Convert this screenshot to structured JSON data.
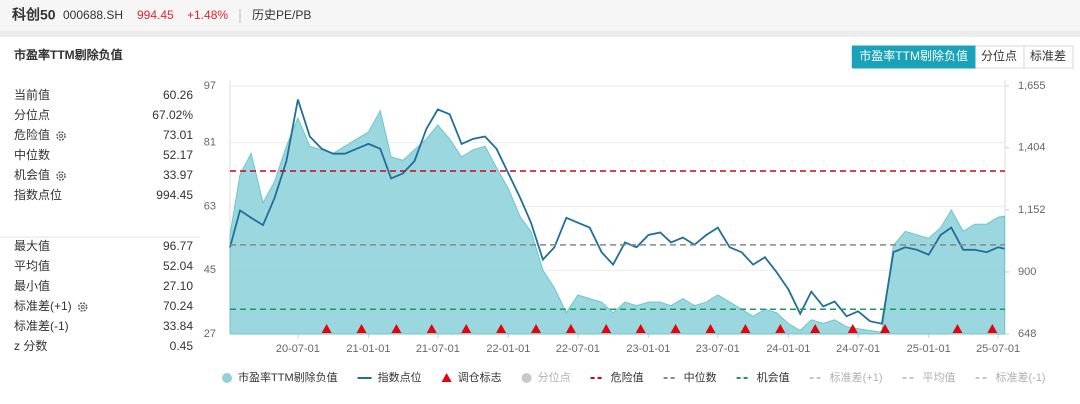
{
  "header": {
    "name": "科创50",
    "code": "000688.SH",
    "price": "994.45",
    "change": "+1.48%",
    "menu": "历史PE/PB"
  },
  "panel": {
    "title": "市盈率TTM剔除负值",
    "tabs": [
      "市盈率TTM剔除负值",
      "分位点",
      "标准差"
    ],
    "active_tab": 0
  },
  "stats": {
    "groups": [
      [
        {
          "label": "当前值",
          "value": "60.26",
          "gear": false
        },
        {
          "label": "分位点",
          "value": "67.02%",
          "gear": false
        },
        {
          "label": "危险值",
          "value": "73.01",
          "gear": true
        },
        {
          "label": "中位数",
          "value": "52.17",
          "gear": false
        },
        {
          "label": "机会值",
          "value": "33.97",
          "gear": true
        },
        {
          "label": "指数点位",
          "value": "994.45",
          "gear": false
        }
      ],
      [
        {
          "label": "最大值",
          "value": "96.77",
          "gear": false
        },
        {
          "label": "平均值",
          "value": "52.04",
          "gear": false
        },
        {
          "label": "最小值",
          "value": "27.10",
          "gear": false
        },
        {
          "label": "标准差(+1)",
          "value": "70.24",
          "gear": true
        },
        {
          "label": "标准差(-1)",
          "value": "33.84",
          "gear": false
        },
        {
          "label": "z 分数",
          "value": "0.45",
          "gear": false
        }
      ]
    ]
  },
  "chart_data": {
    "type": "area-line",
    "x": [
      "20-01-06",
      "20-02-01",
      "20-03-01",
      "20-04-01",
      "20-05-01",
      "20-06-01",
      "20-07-01",
      "20-08-01",
      "20-09-01",
      "20-10-01",
      "20-11-01",
      "20-12-01",
      "21-01-01",
      "21-02-01",
      "21-03-01",
      "21-04-01",
      "21-05-01",
      "21-06-01",
      "21-07-01",
      "21-08-01",
      "21-09-01",
      "21-10-01",
      "21-11-01",
      "21-12-01",
      "22-01-01",
      "22-02-01",
      "22-03-01",
      "22-04-01",
      "22-05-01",
      "22-06-01",
      "22-07-01",
      "22-08-01",
      "22-09-01",
      "22-10-01",
      "22-11-01",
      "22-12-01",
      "23-01-01",
      "23-02-01",
      "23-03-01",
      "23-04-01",
      "23-05-01",
      "23-06-01",
      "23-07-01",
      "23-08-01",
      "23-09-01",
      "23-10-01",
      "23-11-01",
      "23-12-01",
      "24-01-01",
      "24-02-01",
      "24-03-01",
      "24-04-01",
      "24-05-01",
      "24-06-01",
      "24-07-01",
      "24-08-01",
      "24-09-01",
      "24-10-01",
      "24-11-01",
      "24-12-01",
      "25-01-01",
      "25-02-01",
      "25-03-01",
      "25-04-01",
      "25-05-01",
      "25-06-01",
      "25-07-01",
      "25-07-18"
    ],
    "series": [
      {
        "name": "市盈率TTM剔除负值",
        "color": "#8fd3da",
        "style": "area",
        "axis": "y",
        "values": [
          55,
          72,
          78,
          64,
          70,
          80,
          88,
          80,
          79,
          78,
          80,
          82,
          84,
          90,
          77,
          76,
          79,
          82,
          86,
          82,
          77,
          79,
          80,
          74,
          68,
          60,
          56,
          45,
          40,
          33,
          38,
          37,
          36,
          33,
          36,
          35,
          36,
          36,
          35,
          37,
          35,
          36,
          38,
          36,
          34,
          32,
          34,
          33,
          30,
          28,
          31,
          30,
          31,
          29,
          28.5,
          28,
          27.5,
          52,
          56,
          55,
          54,
          57,
          62,
          56,
          58,
          58,
          60,
          60.26
        ]
      },
      {
        "name": "指数点位",
        "color": "#1f6f99",
        "style": "line",
        "axis": "y2",
        "values": [
          1000,
          1150,
          1120,
          1090,
          1200,
          1350,
          1600,
          1450,
          1400,
          1380,
          1380,
          1400,
          1420,
          1400,
          1280,
          1300,
          1350,
          1480,
          1560,
          1540,
          1420,
          1440,
          1450,
          1400,
          1300,
          1200,
          1100,
          950,
          1000,
          1120,
          1100,
          1080,
          980,
          930,
          1020,
          1000,
          1050,
          1060,
          1020,
          1040,
          1010,
          1050,
          1080,
          1000,
          980,
          930,
          960,
          900,
          830,
          730,
          820,
          760,
          780,
          720,
          740,
          700,
          690,
          980,
          1000,
          990,
          970,
          1050,
          1080,
          990,
          990,
          980,
          1000,
          994.45
        ]
      }
    ],
    "markers": {
      "name": "调仓标志",
      "color": "#e8000b",
      "x": [
        "20-09-14",
        "20-12-14",
        "21-03-15",
        "21-06-15",
        "21-09-13",
        "21-12-13",
        "22-03-14",
        "22-06-13",
        "22-09-13",
        "22-12-12",
        "23-03-13",
        "23-06-12",
        "23-09-11",
        "23-12-11",
        "24-03-11",
        "24-06-17",
        "24-09-09",
        "25-03-17",
        "25-06-16"
      ]
    },
    "overlays": [
      {
        "name": "分位点",
        "color": "#c8c8c8",
        "symbol": "circle",
        "visible": false
      },
      {
        "name": "危险值",
        "color": "#d0021b",
        "symbol": "dash",
        "visible": true,
        "value": 73.01
      },
      {
        "name": "中位数",
        "color": "#888888",
        "symbol": "dash",
        "visible": true,
        "value": 52.17
      },
      {
        "name": "机会值",
        "color": "#1a9e57",
        "symbol": "dash",
        "visible": true,
        "value": 33.97
      },
      {
        "name": "标准差(+1)",
        "color": "#c8c8c8",
        "symbol": "dash",
        "visible": false
      },
      {
        "name": "平均值",
        "color": "#c8c8c8",
        "symbol": "dash",
        "visible": false
      },
      {
        "name": "标准差(-1)",
        "color": "#c8c8c8",
        "symbol": "dash",
        "visible": false
      }
    ],
    "xlim": [
      "20-01-06",
      "25-07-19"
    ],
    "xticks": [
      "20-07-01",
      "21-01-01",
      "21-07-01",
      "22-01-01",
      "22-07-01",
      "23-01-01",
      "23-07-01",
      "24-01-01",
      "24-07-01",
      "25-01-01",
      "25-07-01"
    ],
    "ylim": [
      27,
      97
    ],
    "yticks": [
      27,
      45,
      63,
      81,
      97
    ],
    "y2lim": [
      648,
      1655
    ],
    "y2ticks": [
      648,
      900,
      {
        "value": 1152,
        "label": "1,152"
      },
      {
        "value": 1404,
        "label": "1,404"
      },
      {
        "value": 1655,
        "label": "1,655"
      }
    ],
    "grid": true
  }
}
